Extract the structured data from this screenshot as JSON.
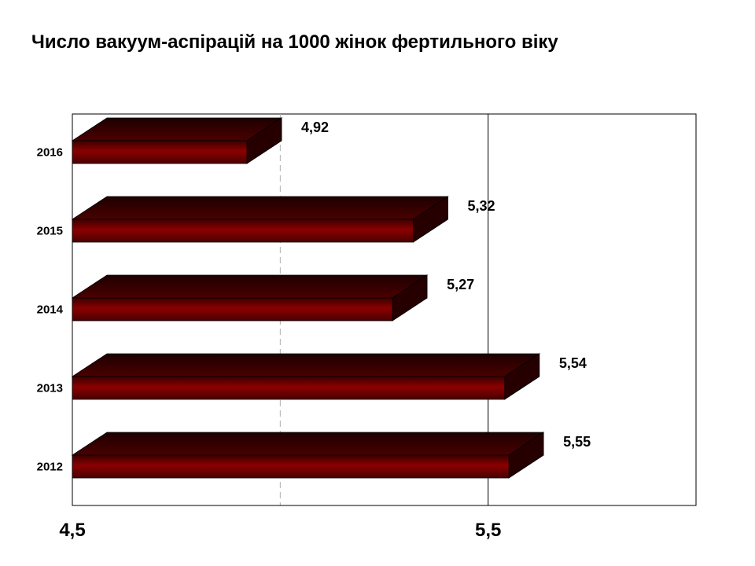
{
  "chart_data": {
    "type": "bar",
    "orientation": "horizontal",
    "title": "Число вакуум-аспірацій на 1000 жінок фертильного віку",
    "categories": [
      "2016",
      "2015",
      "2014",
      "2013",
      "2012"
    ],
    "values": [
      4.92,
      5.32,
      5.27,
      5.54,
      5.55
    ],
    "data_labels": [
      "4,92",
      "5,32",
      "5,27",
      "5,54",
      "5,55"
    ],
    "xlim": [
      4.5,
      6.0
    ],
    "x_ticks": [
      4.5,
      5.5
    ],
    "x_tick_labels": [
      "4,5",
      "5,5"
    ],
    "gridlines": [
      5.0,
      5.5
    ],
    "xlabel": "",
    "ylabel": "",
    "bar_color": "#7a0000",
    "bar_top_color": "#3f0000",
    "bar_side_color": "#260000",
    "legend": "none",
    "style": "3d"
  }
}
